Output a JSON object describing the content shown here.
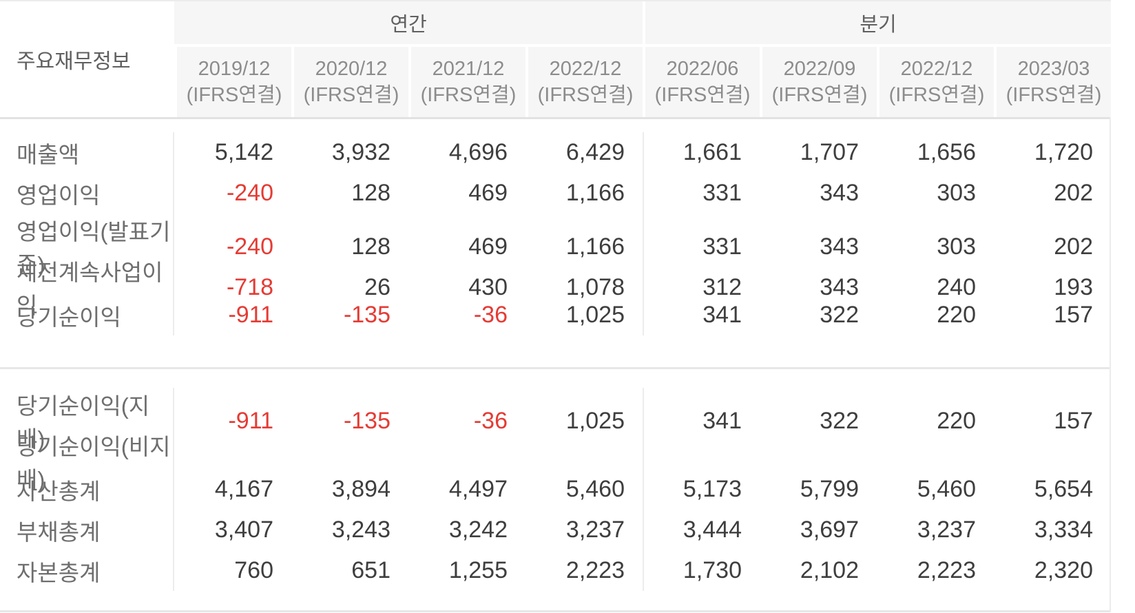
{
  "table": {
    "corner_label": "주요재무정보",
    "groups": [
      {
        "id": "annual",
        "label": "연간"
      },
      {
        "id": "quarterly",
        "label": "분기"
      }
    ],
    "columns": [
      {
        "period": "2019/12",
        "basis": "(IFRS연결)",
        "group": "annual"
      },
      {
        "period": "2020/12",
        "basis": "(IFRS연결)",
        "group": "annual"
      },
      {
        "period": "2021/12",
        "basis": "(IFRS연결)",
        "group": "annual"
      },
      {
        "period": "2022/12",
        "basis": "(IFRS연결)",
        "group": "annual"
      },
      {
        "period": "2022/06",
        "basis": "(IFRS연결)",
        "group": "quarterly"
      },
      {
        "period": "2022/09",
        "basis": "(IFRS연결)",
        "group": "quarterly"
      },
      {
        "period": "2022/12",
        "basis": "(IFRS연결)",
        "group": "quarterly"
      },
      {
        "period": "2023/03",
        "basis": "(IFRS연결)",
        "group": "quarterly"
      }
    ],
    "sections": [
      {
        "rows": [
          {
            "label": "매출액",
            "values": [
              "5,142",
              "3,932",
              "4,696",
              "6,429",
              "1,661",
              "1,707",
              "1,656",
              "1,720"
            ]
          },
          {
            "label": "영업이익",
            "values": [
              "-240",
              "128",
              "469",
              "1,166",
              "331",
              "343",
              "303",
              "202"
            ]
          },
          {
            "label": "영업이익(발표기준)",
            "values": [
              "-240",
              "128",
              "469",
              "1,166",
              "331",
              "343",
              "303",
              "202"
            ]
          },
          {
            "label": "세전계속사업이익",
            "values": [
              "-718",
              "26",
              "430",
              "1,078",
              "312",
              "343",
              "240",
              "193"
            ]
          },
          {
            "label": "당기순이익",
            "values": [
              "-911",
              "-135",
              "-36",
              "1,025",
              "341",
              "322",
              "220",
              "157"
            ]
          }
        ]
      },
      {
        "rows": [
          {
            "label": "당기순이익(지배)",
            "values": [
              "-911",
              "-135",
              "-36",
              "1,025",
              "341",
              "322",
              "220",
              "157"
            ]
          },
          {
            "label": "당기순이익(비지배)",
            "values": [
              "",
              "",
              "",
              "",
              "",
              "",
              "",
              ""
            ]
          },
          {
            "label": "자산총계",
            "values": [
              "4,167",
              "3,894",
              "4,497",
              "5,460",
              "5,173",
              "5,799",
              "5,460",
              "5,654"
            ]
          },
          {
            "label": "부채총계",
            "values": [
              "3,407",
              "3,243",
              "3,242",
              "3,237",
              "3,444",
              "3,697",
              "3,237",
              "3,334"
            ]
          },
          {
            "label": "자본총계",
            "values": [
              "760",
              "651",
              "1,255",
              "2,223",
              "1,730",
              "2,102",
              "2,223",
              "2,320"
            ]
          }
        ]
      }
    ],
    "colors": {
      "negative_value": "#e53b34",
      "positive_value": "#3e3e3e",
      "row_label": "#6e6e6e",
      "header_text": "#8c8c8c",
      "header_background": "#f6f6f6",
      "divider": "#e7e7e7"
    }
  }
}
